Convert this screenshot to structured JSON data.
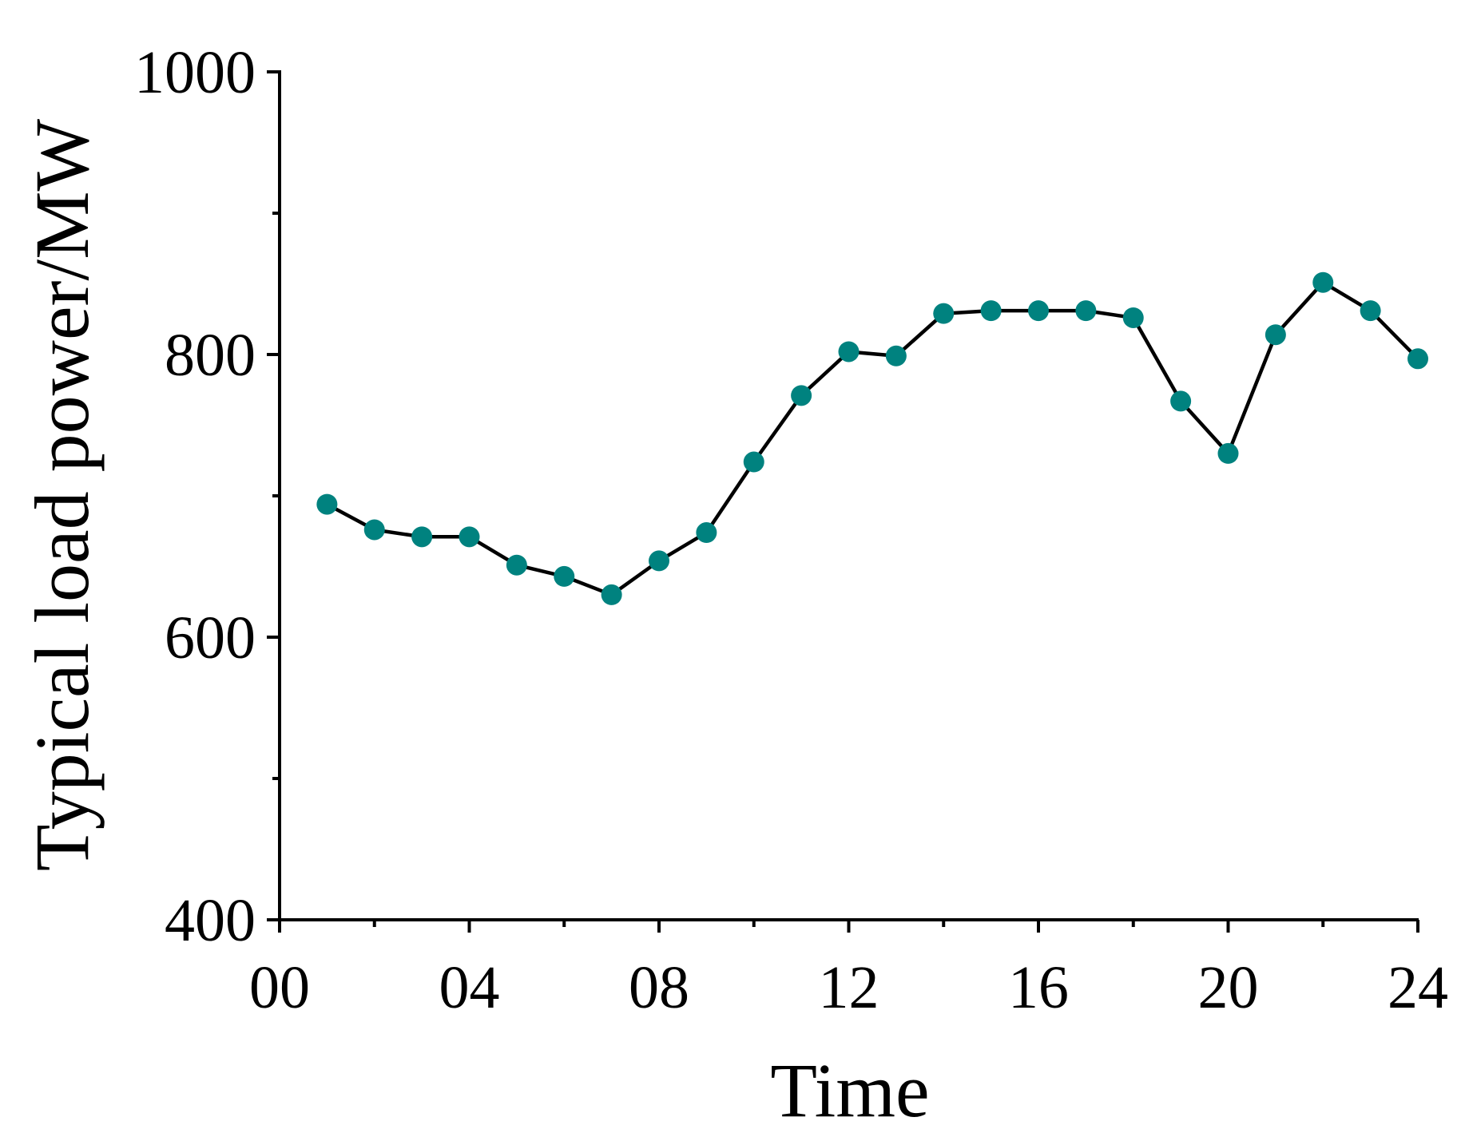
{
  "chart_data": {
    "type": "line",
    "xlabel": "Time",
    "ylabel": "Typical load power/MW",
    "xlim": [
      0,
      24
    ],
    "ylim": [
      400,
      1000
    ],
    "x_ticks": [
      "00",
      "04",
      "08",
      "12",
      "16",
      "20",
      "24"
    ],
    "y_ticks": [
      "400",
      "600",
      "800",
      "1000"
    ],
    "grid": false,
    "marker_color": "#00827F",
    "line_color": "#000000",
    "series": [
      {
        "x": [
          1,
          2,
          3,
          4,
          5,
          6,
          7,
          8,
          9,
          10,
          11,
          12,
          13,
          14,
          15,
          16,
          17,
          18,
          19,
          20,
          21,
          22,
          23,
          24
        ],
        "values": [
          694,
          676,
          671,
          671,
          651,
          643,
          630,
          654,
          674,
          724,
          771,
          802,
          799,
          829,
          831,
          831,
          831,
          826,
          767,
          730,
          814,
          851,
          831,
          797
        ]
      }
    ]
  }
}
